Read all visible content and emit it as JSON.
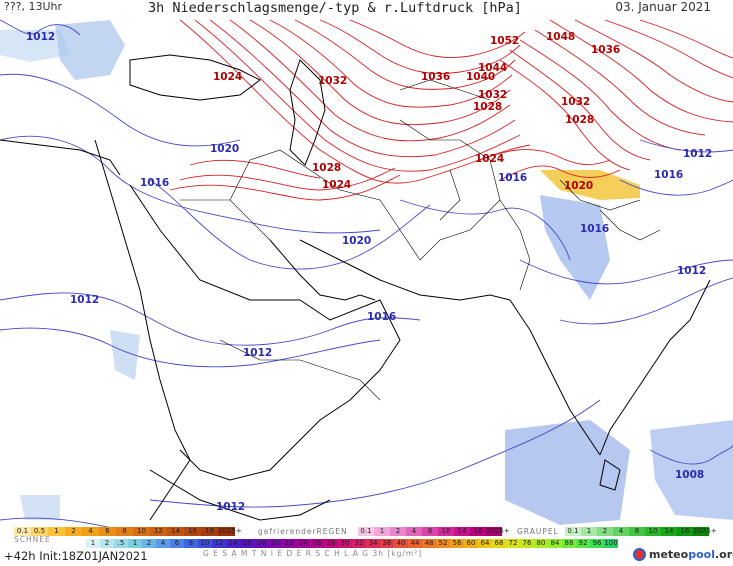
{
  "header": {
    "left": "???, 13Uhr",
    "title": "3h Niederschlagsmenge/-typ & r.Luftdruck [hPa]",
    "date": "03. Januar 2021"
  },
  "footer": {
    "run": "+42h Init:18Z01JAN2021",
    "logo_main": "meteo",
    "logo_accent": "pool",
    "logo_suffix": ".org"
  },
  "legend": {
    "snow_label": "SCHNEE",
    "freezing_rain_label": "gefrierenderREGEN",
    "graupel_label": "GRAUPEL",
    "total_label": "G E S A M T N I E D E R S C H L A G   3h  [kg/m²]",
    "snow_values": [
      "0.1",
      "0.5",
      "1",
      "2",
      "4",
      "6",
      "8",
      "10",
      "12",
      "14",
      "16",
      "18",
      "2025+"
    ],
    "freezing_values": [
      "0.1",
      "1",
      "2",
      "4",
      "8",
      "10",
      "14",
      "16",
      "2025+"
    ],
    "graupel_values": [
      "0.1",
      "1",
      "2",
      "4",
      "8",
      "10",
      "14",
      "16",
      "2025+"
    ],
    "total_values": [
      "1",
      "2",
      ".5",
      "1",
      "2",
      "4",
      "6",
      "8",
      "10",
      "12",
      "14",
      "16",
      "18",
      "20",
      "22",
      "24",
      "26",
      "28",
      "30",
      "32",
      "34",
      "36",
      "40",
      "44",
      "48",
      "52",
      "56",
      "60",
      "64",
      "68",
      "72",
      "76",
      "80",
      "84",
      "88",
      "92",
      "96",
      "100"
    ],
    "snow_colors": [
      "#fde8a8",
      "#fbd56a",
      "#f9c23a",
      "#f5ad1d",
      "#f1a01a",
      "#ea8f18",
      "#e27e16",
      "#d86f14",
      "#cc6112",
      "#c05410",
      "#b2480e",
      "#a53c0c",
      "#97300a"
    ],
    "freezing_colors": [
      "#f8c7e8",
      "#f2a7da",
      "#ea86cb",
      "#e264bb",
      "#d945ab",
      "#cf2a9c",
      "#c5128c",
      "#b8007d",
      "#a8006e"
    ],
    "graupel_colors": [
      "#c8f0c8",
      "#a6e6a6",
      "#84dc84",
      "#62d262",
      "#44c644",
      "#2ab82a",
      "#18a818",
      "#0c980c",
      "#048804"
    ],
    "total_colors": [
      "#d8f2f7",
      "#b8e6ee",
      "#98dae5",
      "#78cedc",
      "#6ab4e8",
      "#5a9ae8",
      "#4c80e6",
      "#3e66e4",
      "#3a4ede",
      "#3c36d6",
      "#4820ce",
      "#5812c4",
      "#6a0cba",
      "#7c08b0",
      "#8e06a4",
      "#a00498",
      "#b0048c",
      "#c00880",
      "#cc1272",
      "#d61e64",
      "#de2c56",
      "#e43c48",
      "#e84e3c",
      "#ec6230",
      "#ee7626",
      "#f08a1e",
      "#f09e18",
      "#eeb214",
      "#ecc612",
      "#e6d812",
      "#d8e216",
      "#c4e81c",
      "#acec24",
      "#92ee2e",
      "#76ec38",
      "#5ae644",
      "#3cde52",
      "#22d264"
    ]
  },
  "isobars": {
    "red": [
      "1052",
      "1048",
      "1036",
      "1044",
      "1040",
      "1036",
      "1032",
      "1024",
      "1032",
      "1028",
      "1032",
      "1028",
      "1024",
      "1028",
      "1024",
      "1020"
    ],
    "blue": [
      "1012",
      "1020",
      "1016",
      "1020",
      "1016",
      "1016",
      "1012",
      "1016",
      "1012",
      "1012",
      "1016",
      "1012",
      "1008",
      "1012"
    ]
  },
  "colors": {
    "isobar_red": "#d42020",
    "isobar_blue": "#4848c8",
    "label_red": "#b00000",
    "label_blue": "#2a2ab0",
    "border": "#000000",
    "coast": "#000000"
  }
}
